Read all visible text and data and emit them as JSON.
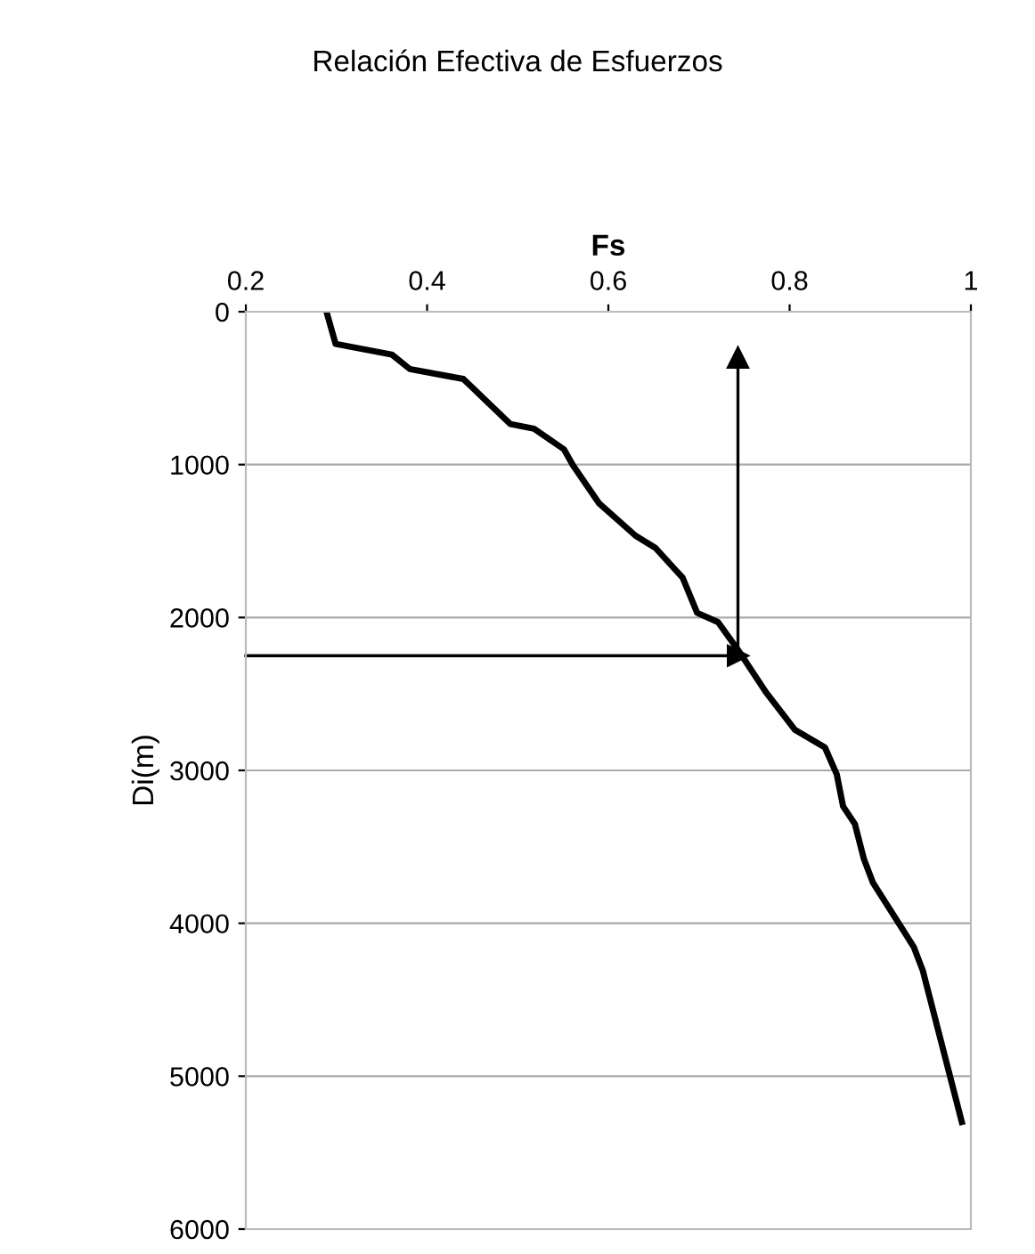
{
  "chart_data": {
    "type": "line",
    "title": "Relación Efectiva de Esfuerzos",
    "xlabel": "Fs",
    "ylabel": "Di(m)",
    "x": [
      0.289,
      0.299,
      0.361,
      0.381,
      0.44,
      0.492,
      0.518,
      0.551,
      0.561,
      0.59,
      0.63,
      0.652,
      0.682,
      0.698,
      0.721,
      0.744,
      0.774,
      0.806,
      0.839,
      0.852,
      0.859,
      0.872,
      0.882,
      0.892,
      0.937,
      0.947,
      0.99
    ],
    "series": [
      {
        "color": "#000000",
        "values": [
          0,
          210,
          280,
          375,
          440,
          735,
          765,
          900,
          1005,
          1255,
          1465,
          1545,
          1740,
          1970,
          2030,
          2220,
          2490,
          2735,
          2850,
          3025,
          3235,
          3350,
          3580,
          3735,
          4155,
          4310,
          5300
        ]
      }
    ],
    "xlim": [
      0.2,
      1
    ],
    "xticks": [
      0.2,
      0.4,
      0.6,
      0.8,
      1
    ],
    "ylim": [
      6000,
      0
    ],
    "yticks": [
      0,
      1000,
      2000,
      3000,
      4000,
      5000,
      6000
    ],
    "grid": "y",
    "marker": "none",
    "line_style": "solid",
    "ref_lines": [
      {
        "axis": "x",
        "value": 0.743
      },
      {
        "axis": "y",
        "value": 2250
      }
    ]
  }
}
